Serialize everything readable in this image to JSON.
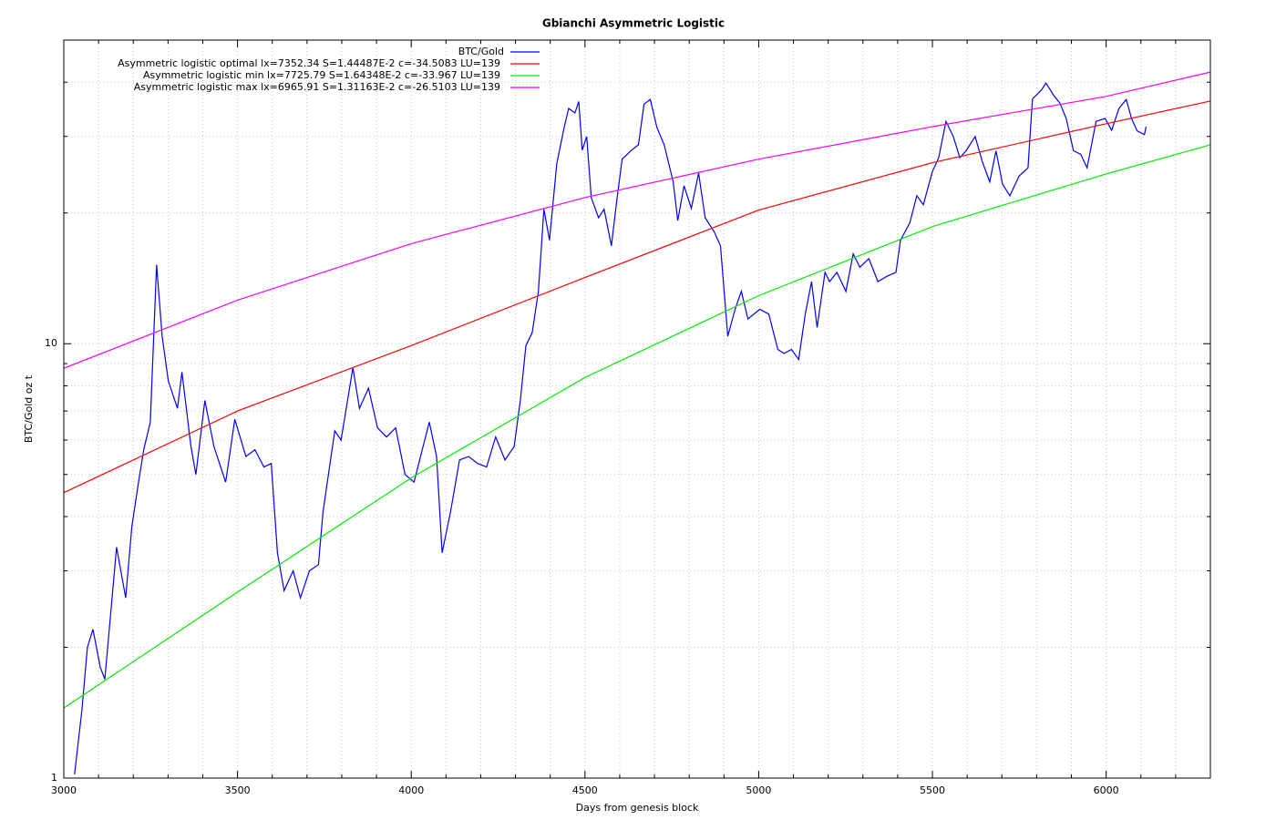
{
  "chart_data": {
    "type": "line",
    "title": "Gbianchi Asymmetric Logistic",
    "xlabel": "Days from genesis block",
    "ylabel": "BTC/Gold oz t",
    "xlim": [
      3000,
      6300
    ],
    "xticks": [
      3000,
      3500,
      4000,
      4500,
      5000,
      5500,
      6000
    ],
    "xticks_minor": [
      3100,
      3200,
      3300,
      3400,
      3600,
      3700,
      3800,
      3900,
      4100,
      4200,
      4300,
      4400,
      4600,
      4700,
      4800,
      4900,
      5100,
      5200,
      5300,
      5400,
      5600,
      5700,
      5800,
      5900,
      6100,
      6200
    ],
    "ylim": [
      1,
      50
    ],
    "yscale": "log",
    "yticks": [
      1,
      10
    ],
    "yticks_minor": [
      2,
      3,
      4,
      5,
      6,
      7,
      8,
      9,
      20,
      30,
      40,
      50
    ],
    "grid": true,
    "legend": "top",
    "series": [
      {
        "name": "BTC/Gold",
        "color": "#0000ff",
        "x": [
          3031,
          3052,
          3068,
          3084,
          3105,
          3118,
          3131,
          3152,
          3178,
          3196,
          3215,
          3230,
          3249,
          3267,
          3283,
          3301,
          3327,
          3340,
          3366,
          3380,
          3406,
          3432,
          3466,
          3492,
          3524,
          3550,
          3576,
          3597,
          3615,
          3634,
          3660,
          3681,
          3707,
          3733,
          3746,
          3780,
          3798,
          3832,
          3851,
          3877,
          3903,
          3929,
          3955,
          3982,
          4008,
          4034,
          4052,
          4073,
          4089,
          4113,
          4139,
          4165,
          4191,
          4217,
          4243,
          4270,
          4296,
          4314,
          4330,
          4348,
          4366,
          4382,
          4398,
          4419,
          4440,
          4453,
          4471,
          4482,
          4492,
          4505,
          4518,
          4539,
          4555,
          4576,
          4592,
          4607,
          4634,
          4654,
          4670,
          4688,
          4707,
          4728,
          4754,
          4767,
          4785,
          4806,
          4827,
          4846,
          4872,
          4890,
          4911,
          4932,
          4950,
          4969,
          5003,
          5029,
          5055,
          5073,
          5094,
          5115,
          5134,
          5152,
          5168,
          5191,
          5204,
          5225,
          5251,
          5272,
          5291,
          5317,
          5343,
          5369,
          5395,
          5408,
          5435,
          5455,
          5474,
          5500,
          5518,
          5539,
          5560,
          5579,
          5597,
          5623,
          5644,
          5665,
          5683,
          5702,
          5723,
          5749,
          5775,
          5788,
          5814,
          5827,
          5848,
          5867,
          5885,
          5906,
          5927,
          5945,
          5971,
          5997,
          6016,
          6037,
          6058,
          6073,
          6089,
          6110,
          6115
        ],
        "values": [
          1.02,
          1.43,
          2.0,
          2.2,
          1.8,
          1.69,
          2.2,
          3.4,
          2.6,
          3.8,
          4.8,
          5.7,
          6.6,
          15.2,
          10.4,
          8.2,
          7.1,
          8.6,
          5.8,
          5.0,
          7.4,
          5.8,
          4.8,
          6.7,
          5.5,
          5.7,
          5.2,
          5.3,
          3.3,
          2.7,
          3.0,
          2.6,
          3.0,
          3.1,
          4.1,
          6.3,
          6.0,
          8.8,
          7.1,
          7.9,
          6.4,
          6.1,
          6.4,
          5.0,
          4.8,
          5.8,
          6.6,
          5.5,
          3.3,
          4.1,
          5.4,
          5.5,
          5.3,
          5.2,
          6.1,
          5.4,
          5.8,
          7.4,
          9.9,
          10.6,
          13.2,
          20.4,
          17.3,
          26.0,
          31.4,
          34.8,
          34.0,
          36.1,
          27.9,
          30.0,
          21.7,
          19.5,
          20.4,
          16.8,
          21.5,
          26.6,
          27.9,
          28.7,
          35.6,
          36.5,
          31.5,
          28.7,
          23.6,
          19.2,
          23.1,
          20.5,
          24.7,
          19.5,
          18.1,
          16.8,
          10.4,
          12.0,
          13.2,
          11.4,
          12.0,
          11.7,
          9.7,
          9.5,
          9.7,
          9.2,
          11.7,
          13.9,
          10.9,
          14.6,
          13.9,
          14.6,
          13.2,
          16.1,
          15.0,
          15.7,
          13.9,
          14.3,
          14.6,
          17.3,
          19.0,
          21.9,
          20.9,
          24.9,
          26.8,
          32.5,
          30.0,
          26.8,
          27.8,
          30.0,
          26.2,
          23.6,
          27.8,
          23.3,
          21.9,
          24.3,
          25.4,
          36.6,
          38.4,
          39.8,
          37.4,
          35.8,
          33.0,
          27.8,
          27.3,
          25.4,
          32.5,
          33.0,
          31.0,
          34.8,
          36.5,
          33.0,
          30.9,
          30.3,
          31.6
        ]
      },
      {
        "name": "Asymmetric logistic optimal lx=7352.34 S=1.44487E-2 c=-34.5083 LU=139",
        "color": "#ff0000",
        "x": [
          3000,
          3500,
          4000,
          4500,
          5000,
          5500,
          6000,
          6300
        ],
        "values": [
          4.54,
          7.0,
          9.9,
          14.2,
          20.3,
          26.1,
          32.1,
          36.2
        ]
      },
      {
        "name": "Asymmetric logistic min lx=7725.79 S=1.64348E-2 c=-33.967 LU=139",
        "color": "#00ee00",
        "x": [
          3000,
          3500,
          4000,
          4500,
          5000,
          5500,
          6000,
          6300
        ],
        "values": [
          1.45,
          2.68,
          4.91,
          8.36,
          12.9,
          18.6,
          24.6,
          28.7
        ]
      },
      {
        "name": "Asymmetric logistic max lx=6965.91 S=1.31163E-2 c=-26.5103 LU=139",
        "color": "#ff00ff",
        "x": [
          3000,
          3500,
          4000,
          4500,
          5000,
          5500,
          6000,
          6300
        ],
        "values": [
          8.78,
          12.6,
          17.0,
          21.7,
          26.6,
          31.6,
          37.1,
          42.2
        ]
      }
    ]
  }
}
